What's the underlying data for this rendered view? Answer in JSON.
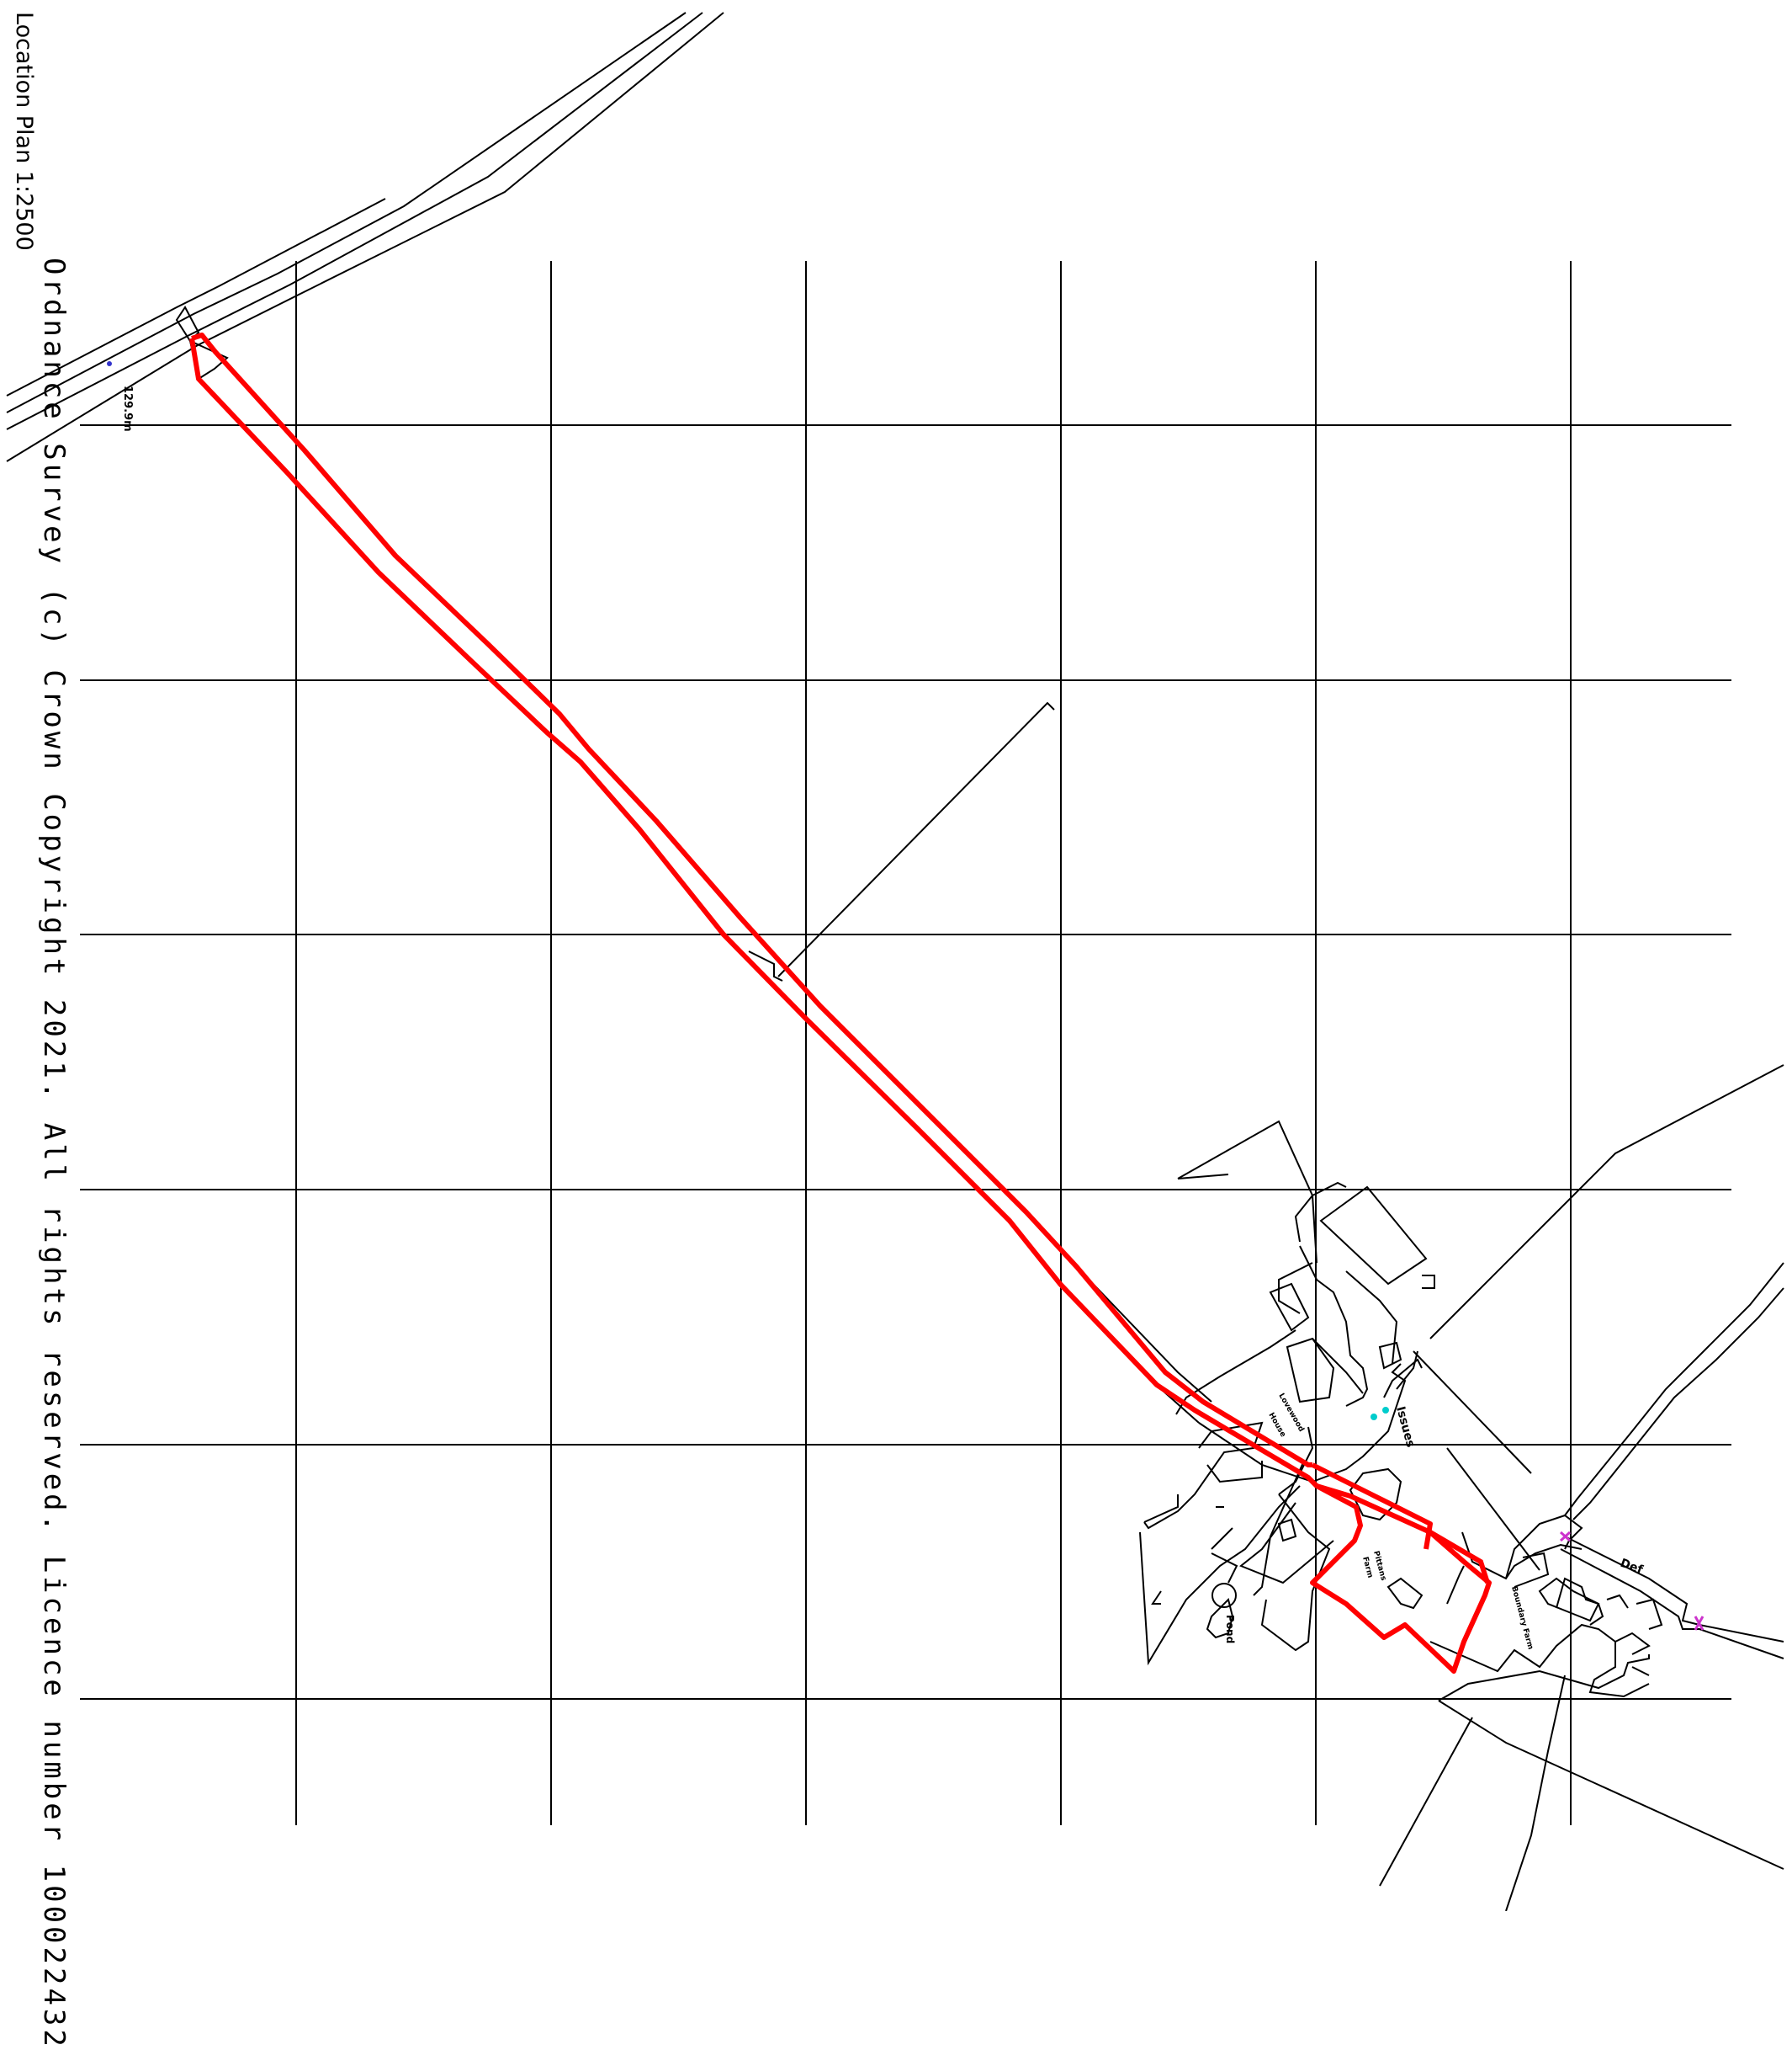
{
  "titles": {
    "location_plan": "Location Plan 1:2500",
    "copyright": "Ordnance Survey (c) Crown Copyright 2021. All rights reserved. Licence number 100022432"
  },
  "labels": {
    "spot_height": "129.9m",
    "issues": "Issues",
    "lovewood_house_line1": "Lovewood",
    "lovewood_house_line2": "House",
    "pittans_farm_line1": "Pittans",
    "pittans_farm_line2": "Farm",
    "boundary_farm": "Boundary Farm",
    "pond": "Pond",
    "def": "Def"
  },
  "colors": {
    "map_lines": "#000000",
    "site_boundary": "#ff0000",
    "marker_blue": "#3333cc",
    "marker_cyan": "#00cccc",
    "marker_magenta": "#cc33cc",
    "background": "#ffffff"
  }
}
